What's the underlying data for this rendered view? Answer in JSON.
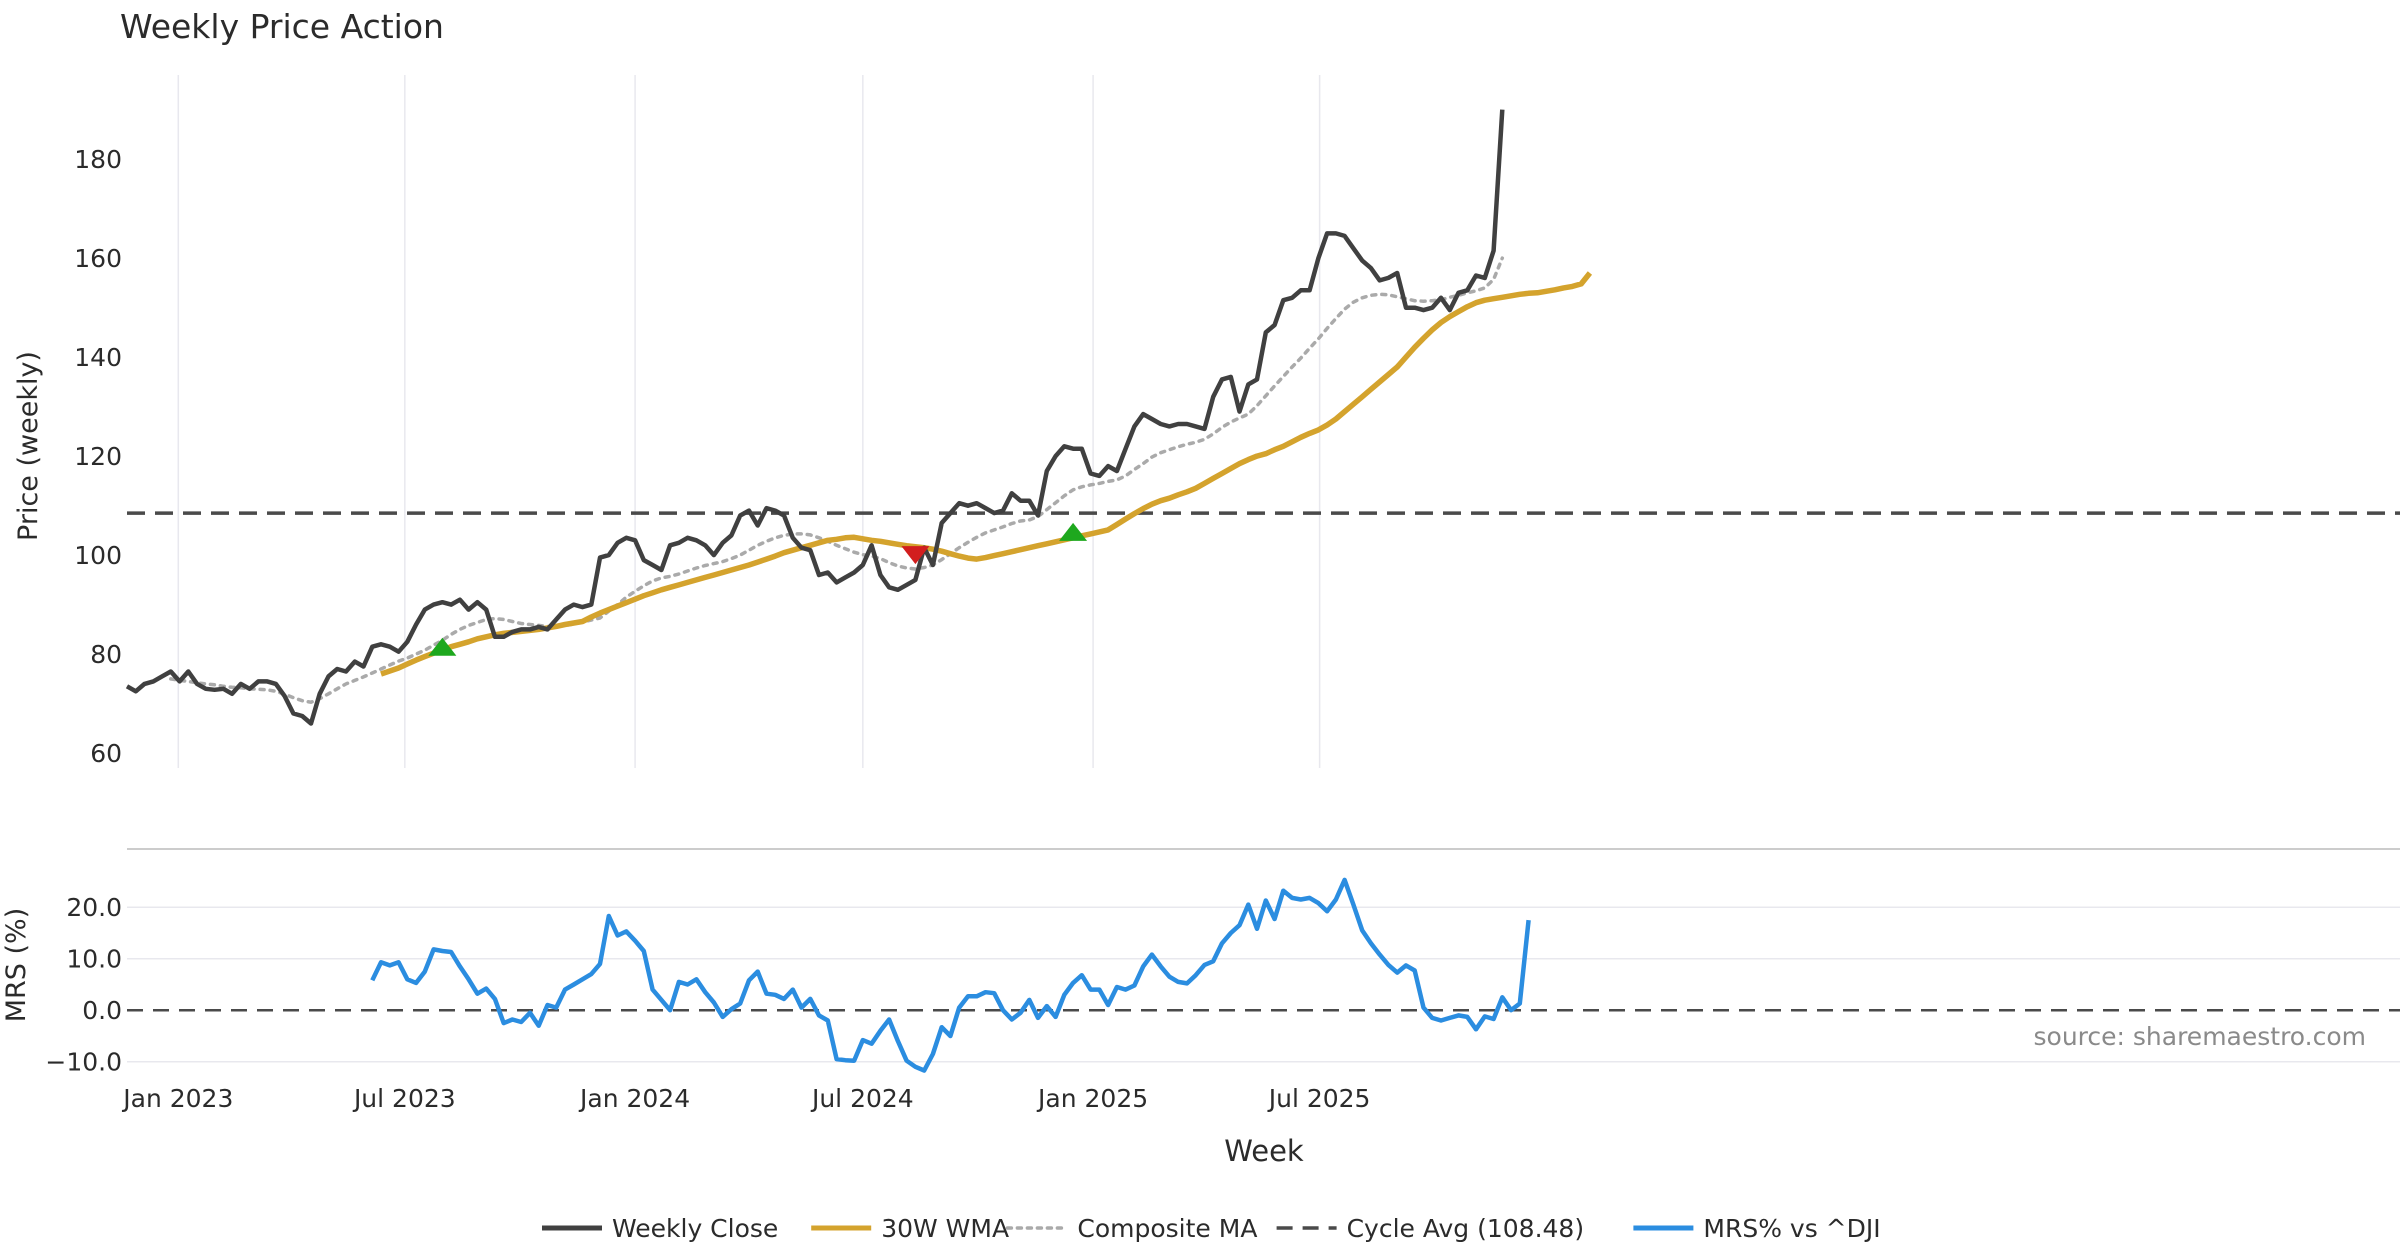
{
  "chart_data": {
    "type": "line",
    "title": "Weekly Price Action",
    "price_panel": {
      "ylabel": "Price (weekly)",
      "ylim": [
        57,
        197
      ],
      "yticks": [
        "60",
        "80",
        "100",
        "120",
        "140",
        "160",
        "180"
      ],
      "ytick_values": [
        60,
        80,
        100,
        120,
        140,
        160,
        180
      ],
      "cycle_avg": 108.48,
      "x_start": "2022-11-21",
      "weekly_close": [
        73.5,
        72.5,
        74,
        74.5,
        75.5,
        76.5,
        74.5,
        76.5,
        74,
        73,
        72.8,
        73,
        72,
        74,
        73,
        74.5,
        74.5,
        74,
        71.5,
        68,
        67.5,
        66,
        72,
        75.5,
        77,
        76.5,
        78.5,
        77.5,
        81.5,
        82,
        81.5,
        80.5,
        82.5,
        86,
        89,
        90,
        90.5,
        90,
        91,
        89,
        90.5,
        89,
        83.5,
        83.5,
        84.5,
        85,
        85,
        85.5,
        85,
        87,
        89,
        90,
        89.5,
        90,
        99.5,
        100,
        102.5,
        103.5,
        103,
        99,
        98,
        97,
        102,
        102.5,
        103.5,
        103,
        102,
        100,
        102.5,
        104,
        108,
        109,
        106,
        109.5,
        109,
        108,
        103.5,
        101.5,
        101,
        96,
        96.5,
        94.5,
        95.5,
        96.5,
        98,
        102,
        96,
        93.5,
        93,
        94,
        95,
        101.5,
        98,
        106.5,
        108.5,
        110.5,
        110,
        110.5,
        109.5,
        108.5,
        109,
        112.5,
        111,
        111,
        108,
        117,
        120,
        122,
        121.5,
        121.5,
        116.5,
        116,
        118,
        117,
        121.5,
        126,
        128.5,
        127.5,
        126.5,
        126,
        126.5,
        126.5,
        126,
        125.5,
        132,
        135.5,
        136,
        129,
        134.5,
        135.5,
        145,
        146.5,
        151.5,
        152,
        153.5,
        153.5,
        160,
        165,
        165,
        164.5,
        162,
        159.5,
        158,
        155.5,
        156,
        157,
        150,
        150,
        149.5,
        150,
        152,
        149.5,
        153,
        153.5,
        156.5,
        156,
        161.5,
        190
      ],
      "wma_30w": {
        "start_index": 29,
        "values": [
          76,
          76.6,
          77.2,
          78,
          78.8,
          79.5,
          80.2,
          80.8,
          81.5,
          82,
          82.5,
          83.1,
          83.5,
          83.9,
          84.2,
          84.4,
          84.6,
          84.8,
          85,
          85.3,
          85.6,
          86,
          86.3,
          86.6,
          87.5,
          88.3,
          89,
          89.7,
          90.4,
          91.1,
          91.8,
          92.4,
          93,
          93.5,
          94,
          94.5,
          95,
          95.5,
          96,
          96.5,
          97,
          97.5,
          98,
          98.6,
          99.2,
          99.8,
          100.5,
          101,
          101.5,
          102,
          102.5,
          103,
          103.2,
          103.5,
          103.6,
          103.3,
          103,
          102.8,
          102.5,
          102.2,
          101.9,
          101.7,
          101.5,
          101.2,
          100.8,
          100.3,
          99.8,
          99.4,
          99.2,
          99.5,
          99.9,
          100.3,
          100.7,
          101.1,
          101.5,
          101.9,
          102.3,
          102.7,
          103.1,
          103.5,
          103.9,
          104.3,
          104.7,
          105.1,
          106.2,
          107.3,
          108.4,
          109.4,
          110.3,
          111,
          111.5,
          112.2,
          112.8,
          113.5,
          114.5,
          115.5,
          116.5,
          117.5,
          118.5,
          119.3,
          120,
          120.5,
          121.3,
          122,
          122.9,
          123.8,
          124.6,
          125.3,
          126.3,
          127.5,
          129,
          130.5,
          132,
          133.5,
          135,
          136.5,
          138,
          140,
          142,
          143.8,
          145.5,
          147,
          148.2,
          149.2,
          150.2,
          151,
          151.5,
          151.8,
          152.1,
          152.4,
          152.7,
          152.9,
          153,
          153.3,
          153.6,
          154,
          154.3,
          154.8,
          157
        ]
      },
      "composite_ma": {
        "start_index": 5,
        "values": [
          75,
          74.7,
          74.5,
          74.2,
          74,
          73.8,
          73.5,
          73.3,
          73.2,
          73,
          72.9,
          72.8,
          72.5,
          71.9,
          71.2,
          70.6,
          70.3,
          71,
          72,
          73,
          74,
          74.7,
          75.4,
          76.2,
          77,
          77.8,
          78.6,
          79.2,
          80,
          80.8,
          81.8,
          82.8,
          84,
          85,
          85.8,
          86.4,
          87,
          87.2,
          87,
          86.6,
          86.2,
          86,
          85.8,
          85.6,
          85.6,
          85.8,
          86.1,
          86.5,
          86.9,
          87.3,
          88.7,
          90,
          91.5,
          92.7,
          93.8,
          94.8,
          95.4,
          95.7,
          96.2,
          96.8,
          97.4,
          97.9,
          98.3,
          98.7,
          99.3,
          100,
          101,
          102,
          102.8,
          103.5,
          104,
          104.3,
          104.3,
          104.1,
          103.5,
          102.8,
          102,
          101.3,
          100.6,
          100.1,
          99.8,
          99.3,
          98.5,
          97.8,
          97.4,
          97.2,
          97.5,
          98,
          99.1,
          100.3,
          101.5,
          102.6,
          103.6,
          104.5,
          105.1,
          105.7,
          106.4,
          106.9,
          107.1,
          107.8,
          109.2,
          110.6,
          112,
          113.2,
          113.8,
          114.2,
          114.5,
          114.9,
          115.2,
          116,
          117.3,
          118.5,
          119.8,
          120.7,
          121.3,
          121.9,
          122.4,
          122.8,
          123.4,
          124.5,
          125.8,
          126.9,
          127.7,
          128.5,
          130.2,
          132.2,
          134.2,
          136.1,
          138,
          139.8,
          141.8,
          143.7,
          145.8,
          147.8,
          149.7,
          151.1,
          152,
          152.5,
          152.7,
          152.6,
          152.2,
          151.8,
          151.4,
          151.3,
          151.4,
          151.6,
          152.1,
          152.5,
          153,
          153.4,
          154,
          155.7,
          160
        ]
      },
      "signals": [
        {
          "type": "buy",
          "index": 36,
          "price": 81.5
        },
        {
          "type": "sell",
          "index": 90,
          "price": 100
        },
        {
          "type": "buy",
          "index": 108,
          "price": 104.7
        }
      ]
    },
    "mrs_panel": {
      "ylabel": "MRS (%)",
      "ylim": [
        -12,
        28
      ],
      "yticks": [
        "20.0",
        "10.0",
        "0.0",
        "−10.0"
      ],
      "ytick_values": [
        20,
        10,
        0,
        -10
      ],
      "mrs_dji": {
        "start_index": 28,
        "values": [
          5.8,
          9.3,
          8.7,
          9.3,
          6,
          5.3,
          7.5,
          11.8,
          11.5,
          11.3,
          8.5,
          6,
          3.2,
          4.2,
          2.2,
          -2.5,
          -1.8,
          -2.3,
          -0.5,
          -3,
          1,
          0.5,
          4,
          5,
          6,
          7,
          9,
          18.3,
          14.5,
          15.3,
          13.5,
          11.5,
          4,
          2,
          0,
          5.5,
          5,
          6,
          3.5,
          1.5,
          -1.3,
          0.2,
          1.3,
          5.8,
          7.5,
          3.2,
          3,
          2.2,
          4,
          0.5,
          2.2,
          -1,
          -2,
          -9.5,
          -9.7,
          -9.8,
          -5.8,
          -6.5,
          -4,
          -1.8,
          -6,
          -9.8,
          -11,
          -11.7,
          -8.5,
          -3.3,
          -5,
          0.5,
          2.7,
          2.7,
          3.5,
          3.3,
          0,
          -1.8,
          -0.5,
          2,
          -1.5,
          0.8,
          -1.3,
          3,
          5.3,
          6.8,
          4,
          4,
          1,
          4.5,
          4,
          4.8,
          8.5,
          10.8,
          8.5,
          6.5,
          5.5,
          5.2,
          6.8,
          8.8,
          9.5,
          13,
          15,
          16.5,
          20.5,
          15.8,
          21.3,
          17.7,
          23.2,
          21.8,
          21.5,
          21.8,
          20.8,
          19.2,
          21.5,
          25.3,
          20.5,
          15.5,
          13,
          10.8,
          8.8,
          7.3,
          8.7,
          7.7,
          0.5,
          -1.5,
          -2,
          -1.5,
          -1,
          -1.3,
          -3.7,
          -1.2,
          -1.7,
          2.5,
          0,
          1.3,
          17.5
        ]
      },
      "source_note": "source: sharemaestro.com"
    },
    "xlabel": "Week",
    "xticks": [
      {
        "label": "Jan 2023",
        "date": "2023-01-01"
      },
      {
        "label": "Jul 2023",
        "date": "2023-07-01"
      },
      {
        "label": "Jan 2024",
        "date": "2024-01-01"
      },
      {
        "label": "Jul 2024",
        "date": "2024-07-01"
      },
      {
        "label": "Jan 2025",
        "date": "2025-01-01"
      },
      {
        "label": "Jul 2025",
        "date": "2025-07-01"
      }
    ],
    "legend": {
      "position": "bottom-center",
      "items": [
        {
          "label": "Weekly Close",
          "color": "#404040",
          "style": "solid"
        },
        {
          "label": "30W WMA",
          "color": "#d4a32d",
          "style": "solid"
        },
        {
          "label": "Composite MA",
          "color": "#aaaaaa",
          "style": "dotted"
        },
        {
          "label": "Cycle Avg (108.48)",
          "color": "#4a4a4a",
          "style": "dashed"
        },
        {
          "label": "MRS% vs ^DJI",
          "color": "#2b8de0",
          "style": "solid"
        }
      ]
    },
    "colors": {
      "close": "#404040",
      "wma": "#d4a32d",
      "composite": "#aaaaaa",
      "cycle": "#4a4a4a",
      "mrs": "#2b8de0",
      "buy": "#1ea81e",
      "sell": "#d21e1e",
      "grid": "#e8e8ee",
      "text": "#2b2b2b",
      "note": "#8a8a8a"
    }
  }
}
